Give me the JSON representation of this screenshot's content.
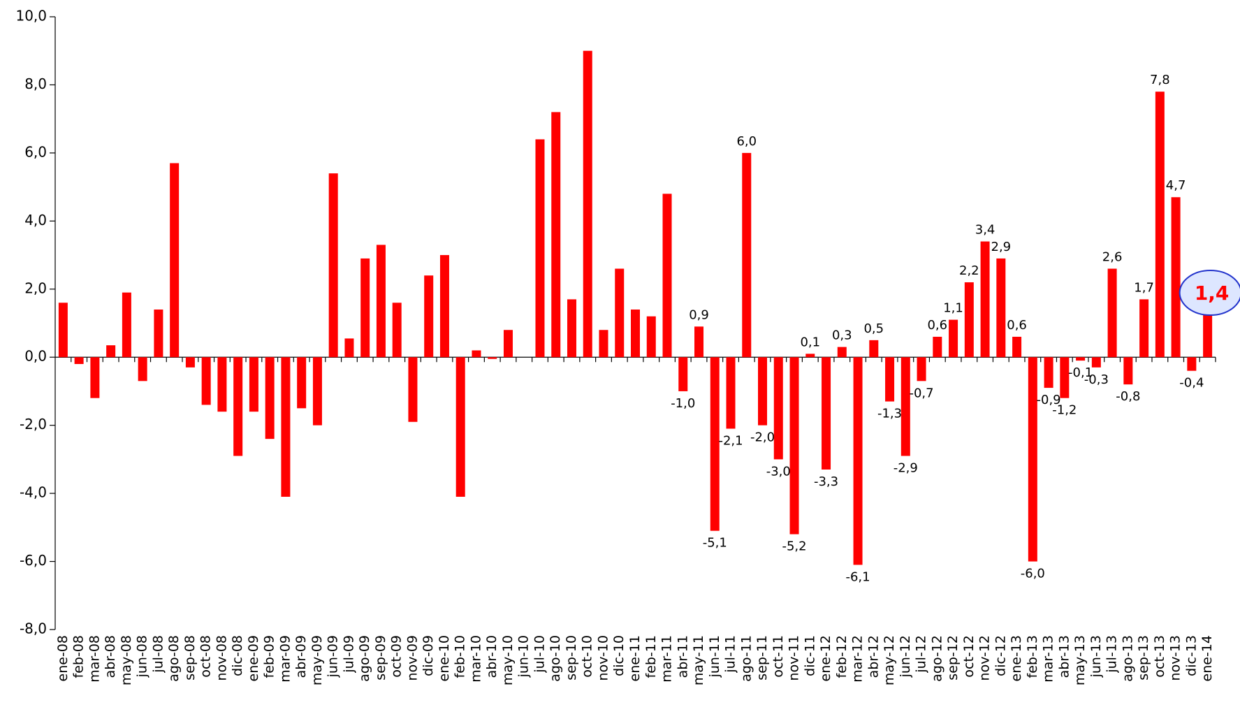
{
  "chart_data": {
    "type": "bar",
    "color": "#ff0000",
    "categories": [
      "ene-08",
      "feb-08",
      "mar-08",
      "abr-08",
      "may-08",
      "jun-08",
      "jul-08",
      "ago-08",
      "sep-08",
      "oct-08",
      "nov-08",
      "dic-08",
      "ene-09",
      "feb-09",
      "mar-09",
      "abr-09",
      "may-09",
      "jun-09",
      "jul-09",
      "ago-09",
      "sep-09",
      "oct-09",
      "nov-09",
      "dic-09",
      "ene-10",
      "feb-10",
      "mar-10",
      "abr-10",
      "may-10",
      "jun-10",
      "jul-10",
      "ago-10",
      "sep-10",
      "oct-10",
      "nov-10",
      "dic-10",
      "ene-11",
      "feb-11",
      "mar-11",
      "abr-11",
      "may-11",
      "jun-11",
      "jul-11",
      "ago-11",
      "sep-11",
      "oct-11",
      "nov-11",
      "dic-11",
      "ene-12",
      "feb-12",
      "mar-12",
      "abr-12",
      "may-12",
      "jun-12",
      "jul-12",
      "ago-12",
      "sep-12",
      "oct-12",
      "nov-12",
      "dic-12",
      "ene-13",
      "feb-13",
      "mar-13",
      "abr-13",
      "may-13",
      "jun-13",
      "jul-13",
      "ago-13",
      "sep-13",
      "oct-13",
      "nov-13",
      "dic-13",
      "ene-14"
    ],
    "values": [
      1.6,
      -0.2,
      -1.2,
      0.35,
      1.9,
      -0.7,
      1.4,
      5.7,
      -0.3,
      -1.4,
      -1.6,
      -2.9,
      -1.6,
      -2.4,
      -4.1,
      -1.5,
      -2.0,
      5.4,
      0.55,
      2.9,
      3.3,
      1.6,
      -1.9,
      2.4,
      3.0,
      -4.1,
      0.2,
      -0.05,
      0.8,
      0,
      6.4,
      7.2,
      1.7,
      9.0,
      0.8,
      2.6,
      1.4,
      1.2,
      4.8,
      -1.0,
      0.9,
      -5.1,
      -2.1,
      6.0,
      -2.0,
      -3.0,
      -5.2,
      0.1,
      -3.3,
      0.3,
      -6.1,
      0.5,
      -1.3,
      -2.9,
      -0.7,
      0.6,
      1.1,
      2.2,
      3.4,
      2.9,
      0.6,
      -6.0,
      -0.9,
      -1.2,
      -0.1,
      -0.3,
      2.6,
      -0.8,
      1.7,
      7.8,
      4.7,
      -0.4,
      1.4
    ],
    "value_labels": [
      null,
      null,
      null,
      null,
      null,
      null,
      null,
      null,
      null,
      null,
      null,
      null,
      null,
      null,
      null,
      null,
      null,
      null,
      null,
      null,
      null,
      null,
      null,
      null,
      null,
      null,
      null,
      null,
      null,
      null,
      null,
      null,
      null,
      null,
      null,
      null,
      null,
      null,
      null,
      "-1,0",
      "0,9",
      "-5,1",
      "-2,1",
      "6,0",
      "-2,0",
      "-3,0",
      "-5,2",
      "0,1",
      "-3,3",
      "0,3",
      "-6,1",
      "0,5",
      "-1,3",
      "-2,9",
      "-0,7",
      "0,6",
      "1,1",
      "2,2",
      "3,4",
      "2,9",
      "0,6",
      "-6,0",
      "-0,9",
      "-1,2",
      "-0,1",
      "-0,3",
      "2,6",
      "-0,8",
      "1,7",
      "7,8",
      "4,7",
      "-0,4",
      "1,4"
    ],
    "ylim": [
      -8,
      10
    ],
    "yticks": [
      {
        "value": -8,
        "label": "-8,0"
      },
      {
        "value": -6,
        "label": "-6,0"
      },
      {
        "value": -4,
        "label": "-4,0"
      },
      {
        "value": -2,
        "label": "-2,0"
      },
      {
        "value": 0,
        "label": "0,0"
      },
      {
        "value": 2,
        "label": "2,0"
      },
      {
        "value": 4,
        "label": "4,0"
      },
      {
        "value": 6,
        "label": "6,0"
      },
      {
        "value": 8,
        "label": "8,0"
      },
      {
        "value": 10,
        "label": "10,0"
      }
    ]
  }
}
